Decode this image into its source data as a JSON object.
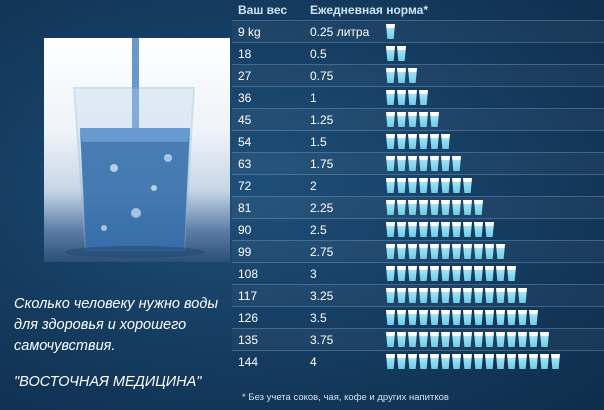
{
  "caption": "Сколько человеку нужно воды для здоровья и хорошего самочувствия.",
  "brand": "\"ВОСТОЧНАЯ МЕДИЦИНА\"",
  "table": {
    "header_weight": "Ваш вес",
    "header_norm": "Ежедневная норма*",
    "rows": [
      {
        "weight": "9 kg",
        "liters": "0.25 литра",
        "cups": 1
      },
      {
        "weight": "18",
        "liters": "0.5",
        "cups": 2
      },
      {
        "weight": "27",
        "liters": "0.75",
        "cups": 3
      },
      {
        "weight": "36",
        "liters": "1",
        "cups": 4
      },
      {
        "weight": "45",
        "liters": "1.25",
        "cups": 5
      },
      {
        "weight": "54",
        "liters": "1.5",
        "cups": 6
      },
      {
        "weight": "63",
        "liters": "1.75",
        "cups": 7
      },
      {
        "weight": "72",
        "liters": "2",
        "cups": 8
      },
      {
        "weight": "81",
        "liters": "2.25",
        "cups": 9
      },
      {
        "weight": "90",
        "liters": "2.5",
        "cups": 10
      },
      {
        "weight": "99",
        "liters": "2.75",
        "cups": 11
      },
      {
        "weight": "108",
        "liters": "3",
        "cups": 12
      },
      {
        "weight": "117",
        "liters": "3.25",
        "cups": 13
      },
      {
        "weight": "126",
        "liters": "3.5",
        "cups": 14
      },
      {
        "weight": "135",
        "liters": "3.75",
        "cups": 15
      },
      {
        "weight": "144",
        "liters": "4",
        "cups": 16
      }
    ]
  },
  "footnote": "* Без учета соков, чая, кофе и других напитков",
  "colors": {
    "background": "#143b5f",
    "cup_water": "#6bcde8",
    "header_text": "#cfe2f2"
  }
}
